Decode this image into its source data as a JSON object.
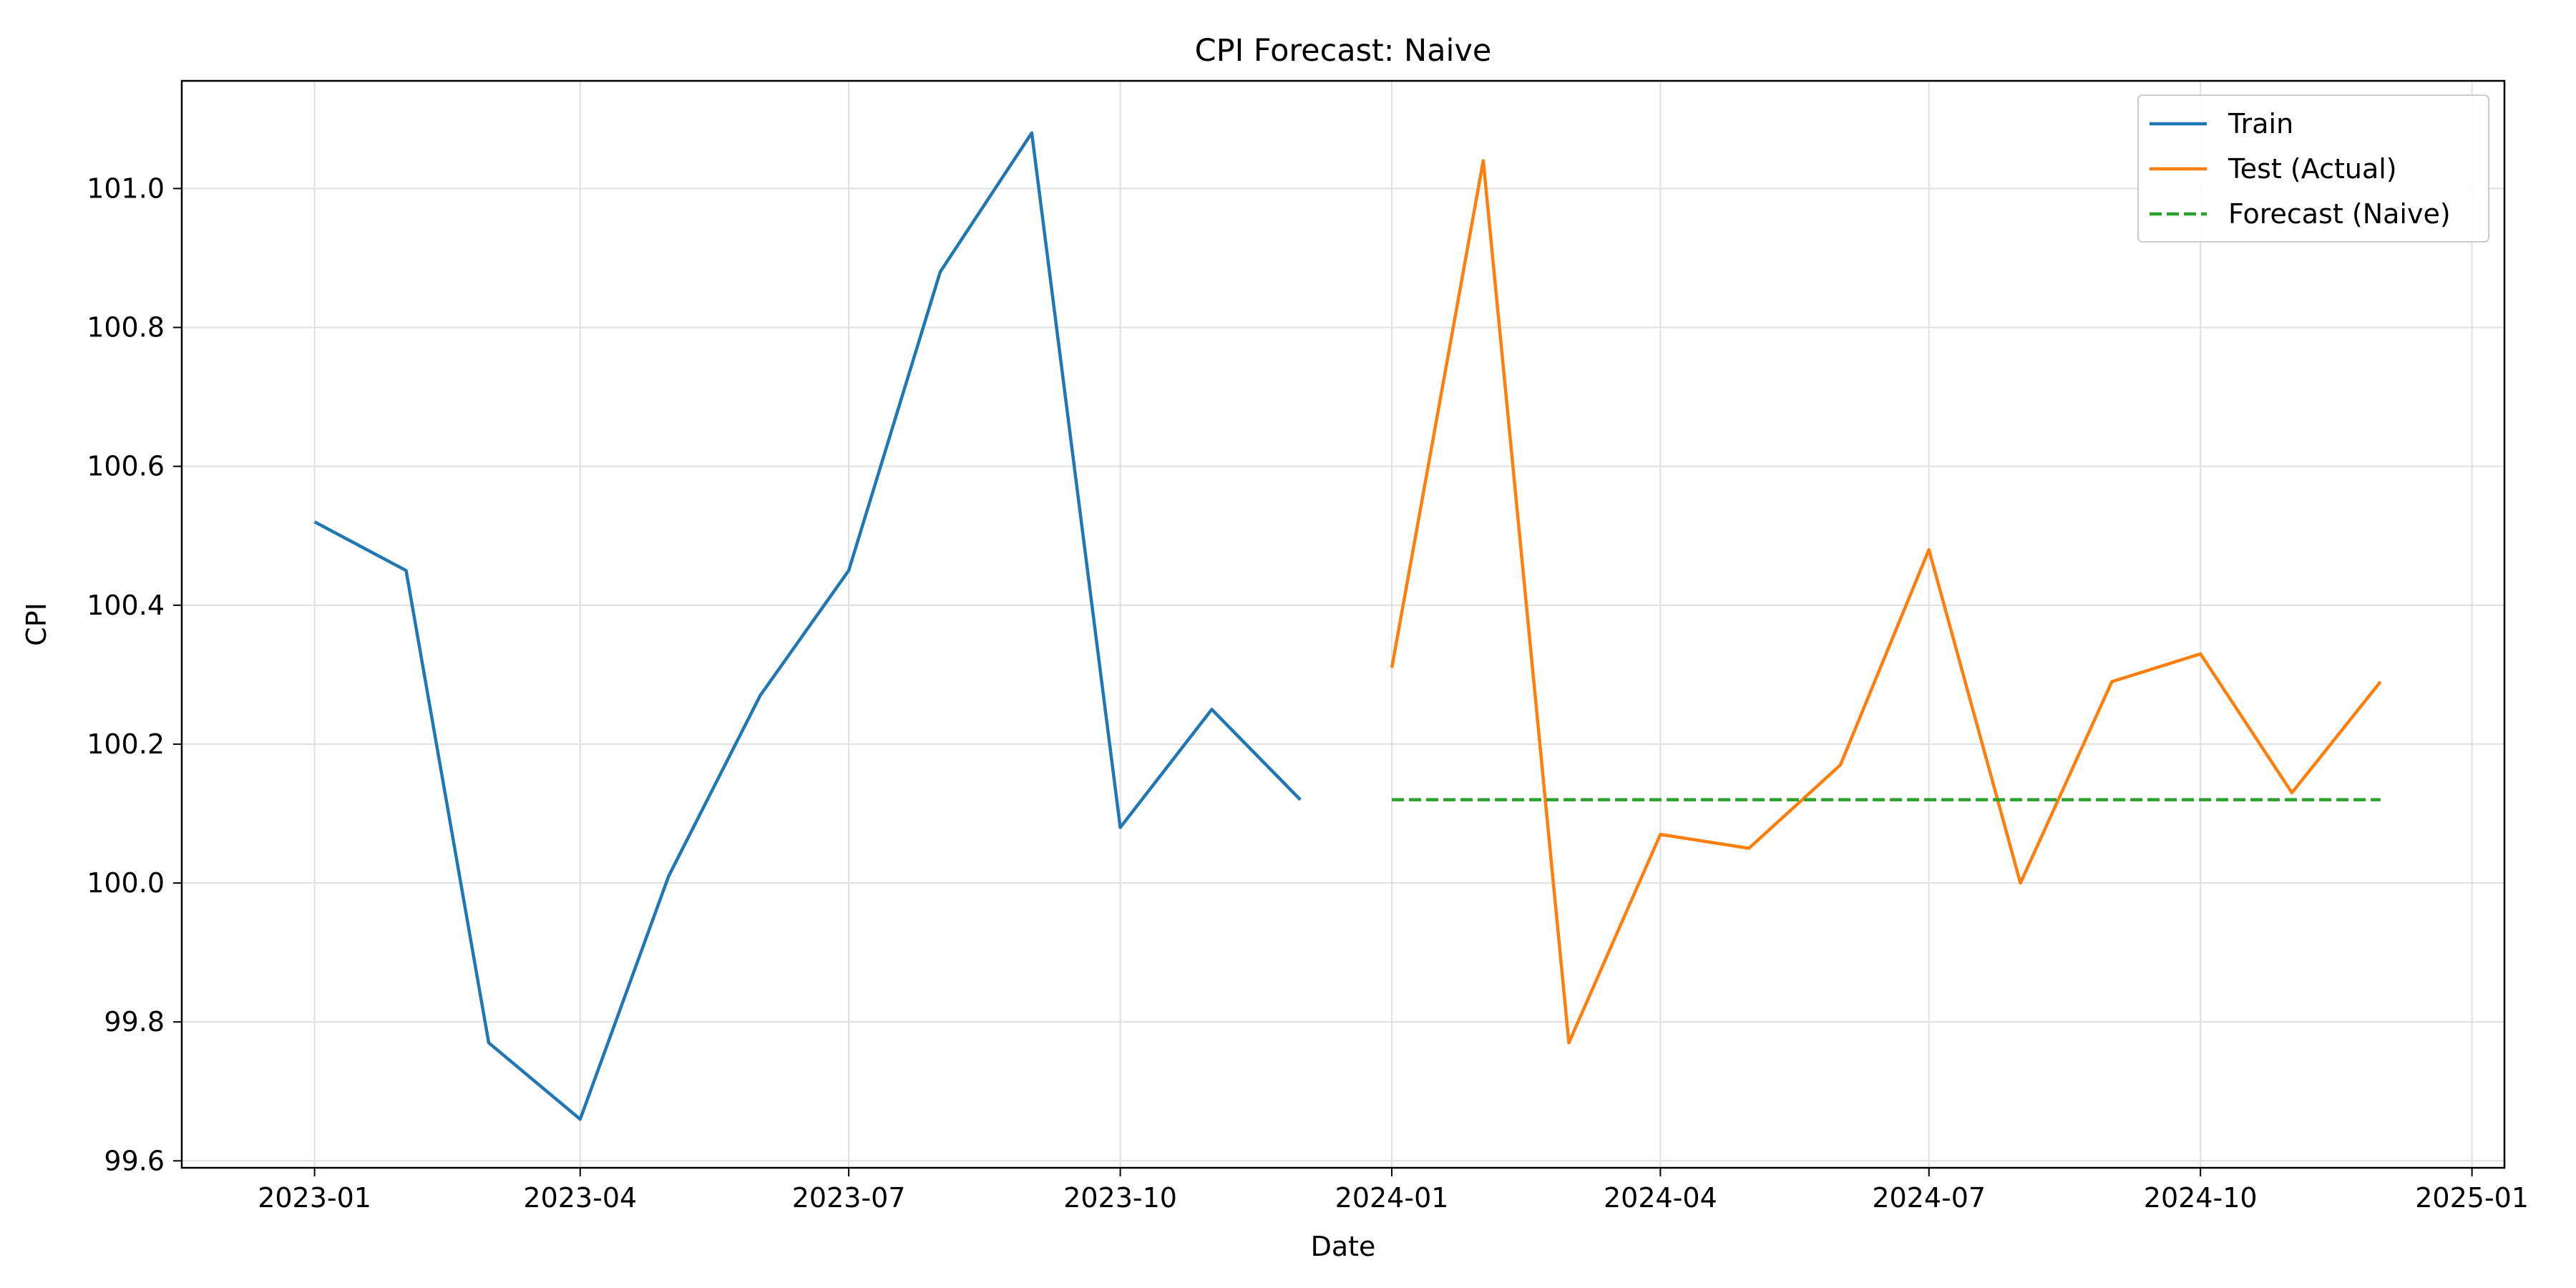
{
  "chart_data": {
    "type": "line",
    "title": "CPI Forecast: Naive",
    "xlabel": "Date",
    "ylabel": "CPI",
    "grid": true,
    "legend_position": "top-right",
    "xlim": [
      "2022-11-17",
      "2025-01-12"
    ],
    "ylim": [
      99.59,
      101.155
    ],
    "xticks": [
      {
        "date": "2023-01-01",
        "label": "2023-01"
      },
      {
        "date": "2023-04-01",
        "label": "2023-04"
      },
      {
        "date": "2023-07-01",
        "label": "2023-07"
      },
      {
        "date": "2023-10-01",
        "label": "2023-10"
      },
      {
        "date": "2024-01-01",
        "label": "2024-01"
      },
      {
        "date": "2024-04-01",
        "label": "2024-04"
      },
      {
        "date": "2024-07-01",
        "label": "2024-07"
      },
      {
        "date": "2024-10-01",
        "label": "2024-10"
      },
      {
        "date": "2025-01-01",
        "label": "2025-01"
      }
    ],
    "yticks": [
      {
        "value": 99.6,
        "label": "99.6"
      },
      {
        "value": 99.8,
        "label": "99.8"
      },
      {
        "value": 100.0,
        "label": "100.0"
      },
      {
        "value": 100.2,
        "label": "100.2"
      },
      {
        "value": 100.4,
        "label": "100.4"
      },
      {
        "value": 100.6,
        "label": "100.6"
      },
      {
        "value": 100.8,
        "label": "100.8"
      },
      {
        "value": 101.0,
        "label": "101.0"
      }
    ],
    "series": [
      {
        "name": "Train",
        "color": "#1f77b4",
        "dashed": false,
        "x": [
          "2023-01-01",
          "2023-02-01",
          "2023-03-01",
          "2023-04-01",
          "2023-05-01",
          "2023-06-01",
          "2023-07-01",
          "2023-08-01",
          "2023-09-01",
          "2023-10-01",
          "2023-11-01",
          "2023-12-01"
        ],
        "y": [
          100.52,
          100.45,
          99.77,
          99.66,
          100.01,
          100.27,
          100.45,
          100.88,
          101.08,
          100.08,
          100.25,
          100.12
        ]
      },
      {
        "name": "Test (Actual)",
        "color": "#ff7f0e",
        "dashed": false,
        "x": [
          "2024-01-01",
          "2024-02-01",
          "2024-03-01",
          "2024-04-01",
          "2024-05-01",
          "2024-06-01",
          "2024-07-01",
          "2024-08-01",
          "2024-09-01",
          "2024-10-01",
          "2024-11-01",
          "2024-12-01"
        ],
        "y": [
          100.31,
          101.04,
          99.77,
          100.07,
          100.05,
          100.17,
          100.48,
          100.0,
          100.29,
          100.33,
          100.13,
          100.29
        ]
      },
      {
        "name": "Forecast (Naive)",
        "color": "#2ca02c",
        "dashed": true,
        "x": [
          "2024-01-01",
          "2024-02-01",
          "2024-03-01",
          "2024-04-01",
          "2024-05-01",
          "2024-06-01",
          "2024-07-01",
          "2024-08-01",
          "2024-09-01",
          "2024-10-01",
          "2024-11-01",
          "2024-12-01"
        ],
        "y": [
          100.12,
          100.12,
          100.12,
          100.12,
          100.12,
          100.12,
          100.12,
          100.12,
          100.12,
          100.12,
          100.12,
          100.12
        ]
      }
    ]
  }
}
